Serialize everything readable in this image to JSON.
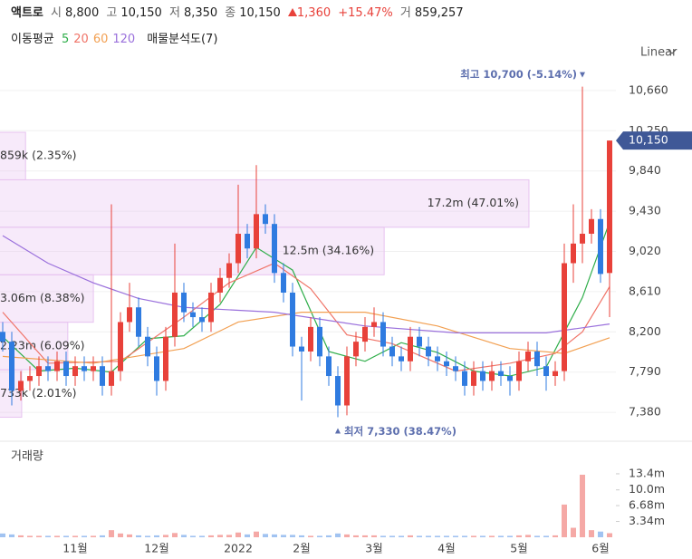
{
  "header": {
    "name": "액트로",
    "fields": [
      {
        "label": "시",
        "value": "8,800"
      },
      {
        "label": "고",
        "value": "10,150"
      },
      {
        "label": "저",
        "value": "8,350"
      },
      {
        "label": "종",
        "value": "10,150"
      }
    ],
    "change": "1,360",
    "change_pct": "+15.47%",
    "volume": {
      "label": "거",
      "value": "859,257"
    }
  },
  "chart_data": {
    "type": "candlestick",
    "scale_label": "Linear",
    "moving_average_title": "이동평균",
    "categories": [
      null,
      null,
      null,
      null,
      null,
      null,
      null,
      null,
      "11월",
      null,
      null,
      null,
      null,
      null,
      null,
      null,
      null,
      "12월",
      null,
      null,
      null,
      null,
      null,
      null,
      null,
      null,
      "2022",
      null,
      null,
      null,
      null,
      null,
      null,
      "2월",
      null,
      null,
      null,
      null,
      null,
      null,
      null,
      "3월",
      null,
      null,
      null,
      null,
      null,
      null,
      null,
      "4월",
      null,
      null,
      null,
      null,
      null,
      null,
      null,
      "5월",
      null,
      null,
      null,
      null,
      null,
      null,
      null,
      null,
      "6월",
      null
    ],
    "open": [
      8200,
      8100,
      7600,
      7700,
      7750,
      7850,
      7800,
      7900,
      7750,
      7850,
      7800,
      7850,
      7650,
      7800,
      8300,
      8450,
      8150,
      7950,
      7700,
      8150,
      8600,
      8400,
      8350,
      8300,
      8600,
      8750,
      8900,
      9200,
      9050,
      9400,
      9300,
      8800,
      8600,
      8050,
      8000,
      8250,
      7950,
      7750,
      7450,
      7950,
      8100,
      8250,
      8300,
      8050,
      7950,
      7900,
      8150,
      8050,
      7950,
      7900,
      7850,
      7800,
      7650,
      7800,
      7700,
      7800,
      7750,
      7700,
      7900,
      8000,
      7850,
      7750,
      7800,
      8900,
      9100,
      9200,
      9350,
      8800
    ],
    "high": [
      8300,
      8200,
      7800,
      7850,
      7950,
      7950,
      8000,
      8000,
      7950,
      7950,
      7950,
      7950,
      9500,
      8400,
      8700,
      8550,
      8250,
      8050,
      8250,
      9100,
      8700,
      8500,
      8450,
      8700,
      8850,
      9000,
      9700,
      9300,
      9900,
      9500,
      9400,
      8900,
      8700,
      8150,
      8350,
      8350,
      8050,
      7850,
      8050,
      8200,
      8350,
      8450,
      8400,
      8150,
      8050,
      8250,
      8250,
      8150,
      8050,
      8000,
      7950,
      7900,
      7900,
      7900,
      7900,
      7900,
      7850,
      8000,
      8100,
      8100,
      7950,
      7900,
      9100,
      9500,
      10700,
      9450,
      9450,
      10150
    ],
    "low": [
      8000,
      7450,
      7500,
      7600,
      7650,
      7700,
      7700,
      7650,
      7650,
      7700,
      7700,
      7550,
      7550,
      7700,
      8200,
      8050,
      7850,
      7550,
      7600,
      8050,
      8300,
      8250,
      8200,
      8200,
      8500,
      8650,
      8800,
      8950,
      8950,
      9200,
      8700,
      8500,
      7950,
      7500,
      7900,
      7850,
      7650,
      7330,
      7350,
      7850,
      8000,
      8150,
      7950,
      7850,
      7800,
      7800,
      7950,
      7850,
      7800,
      7750,
      7700,
      7550,
      7550,
      7600,
      7600,
      7650,
      7550,
      7600,
      7800,
      7750,
      7600,
      7650,
      7700,
      8700,
      8900,
      9100,
      8700,
      8350
    ],
    "close": [
      8100,
      7600,
      7700,
      7750,
      7850,
      7800,
      7900,
      7750,
      7850,
      7800,
      7850,
      7650,
      7800,
      8300,
      8450,
      8150,
      7950,
      7700,
      8150,
      8600,
      8400,
      8350,
      8300,
      8600,
      8750,
      8900,
      9200,
      9050,
      9400,
      9300,
      8800,
      8600,
      8050,
      8000,
      8250,
      7950,
      7750,
      7450,
      7950,
      8100,
      8250,
      8300,
      8050,
      7950,
      7900,
      8150,
      8050,
      7950,
      7900,
      7850,
      7800,
      7650,
      7800,
      7700,
      7800,
      7750,
      7700,
      7900,
      8000,
      7850,
      7750,
      7800,
      8900,
      9100,
      9200,
      9350,
      8790,
      10150
    ],
    "up_color": "#e8413a",
    "down_color": "#2f7be0",
    "ylim": [
      7150,
      10890
    ],
    "yticks": [
      {
        "value": 7380,
        "label": "7,380"
      },
      {
        "value": 7790,
        "label": "7,790"
      },
      {
        "value": 8200,
        "label": "8,200"
      },
      {
        "value": 8610,
        "label": "8,610"
      },
      {
        "value": 9020,
        "label": "9,020"
      },
      {
        "value": 9430,
        "label": "9,430"
      },
      {
        "value": 9840,
        "label": "9,840"
      },
      {
        "value": 10250,
        "label": "10,250"
      },
      {
        "value": 10660,
        "label": "10,660"
      }
    ],
    "grid": true,
    "series": [
      {
        "name": "5",
        "color": "#2fae4a",
        "x": [
          0,
          4,
          8,
          12,
          16,
          20,
          24,
          28,
          32,
          36,
          40,
          44,
          48,
          52,
          56,
          60,
          64,
          67
        ],
        "values": [
          8150,
          7800,
          7830,
          7790,
          8130,
          8160,
          8480,
          9060,
          8830,
          8000,
          7900,
          8090,
          7990,
          7800,
          7750,
          7840,
          8550,
          9320
        ]
      },
      {
        "name": "20",
        "color": "#f07468",
        "x": [
          0,
          5,
          13,
          20,
          25,
          30,
          34,
          38,
          43,
          50,
          56,
          61,
          64,
          67
        ],
        "values": [
          8400,
          7880,
          7900,
          8350,
          8700,
          8900,
          8640,
          8170,
          8080,
          7800,
          7880,
          7980,
          8200,
          8660
        ]
      },
      {
        "name": "60",
        "color": "#f2a052",
        "x": [
          0,
          10,
          20,
          26,
          33,
          40,
          48,
          56,
          62,
          67
        ],
        "values": [
          7950,
          7880,
          8030,
          8300,
          8400,
          8400,
          8260,
          8030,
          7980,
          8140
        ]
      },
      {
        "name": "120",
        "color": "#9a70dc",
        "x": [
          0,
          5,
          10,
          15,
          20,
          30,
          40,
          50,
          60,
          67
        ],
        "values": [
          9180,
          8900,
          8700,
          8540,
          8450,
          8400,
          8260,
          8190,
          8190,
          8280
        ]
      }
    ],
    "volume_profile": {
      "title": "매물분석도(7)",
      "bins": [
        7330,
        7814,
        8298,
        8782,
        9266,
        9750,
        10234
      ],
      "values": [
        0.733,
        2.23,
        3.06,
        12.5,
        17.2,
        0.859
      ],
      "labels": [
        "733k (2.01%)",
        "2.23m (6.09%)",
        "3.06m (8.38%)",
        "12.5m (34.16%)",
        "17.2m (47.01%)",
        "859k (2.35%)"
      ],
      "color": "#e7c3f0"
    },
    "volume": {
      "title": "거래량",
      "values": [
        0.8,
        0.6,
        0.4,
        0.3,
        0.3,
        0.3,
        0.3,
        0.3,
        0.3,
        0.3,
        0.3,
        0.4,
        1.5,
        0.8,
        0.6,
        0.4,
        0.3,
        0.4,
        0.5,
        0.9,
        0.5,
        0.3,
        0.3,
        0.4,
        0.5,
        0.5,
        1.0,
        0.6,
        1.2,
        0.7,
        0.6,
        0.5,
        0.5,
        0.4,
        0.3,
        0.3,
        0.4,
        0.8,
        0.6,
        0.4,
        0.4,
        0.4,
        0.3,
        0.3,
        0.3,
        0.4,
        0.3,
        0.3,
        0.3,
        0.3,
        0.3,
        0.3,
        0.3,
        0.3,
        0.3,
        0.3,
        0.3,
        0.4,
        0.5,
        0.3,
        0.3,
        0.4,
        6.9,
        2.0,
        13.2,
        1.5,
        1.2,
        0.859
      ],
      "ylim": [
        0,
        19.7
      ],
      "yticks": [
        {
          "value": 3.34,
          "label": "3.34m"
        },
        {
          "value": 6.68,
          "label": "6.68m"
        },
        {
          "value": 10.0,
          "label": "10.0m"
        },
        {
          "value": 13.4,
          "label": "13.4m"
        }
      ]
    },
    "annotations": {
      "high": {
        "text": "최고 10,700 (-5.14%)",
        "value": 10700,
        "index": 64
      },
      "low": {
        "text": "최저 7,330 (38.47%)",
        "value": 7330,
        "index": 37
      }
    },
    "last_price": {
      "value": 10150,
      "label": "10,150"
    }
  }
}
